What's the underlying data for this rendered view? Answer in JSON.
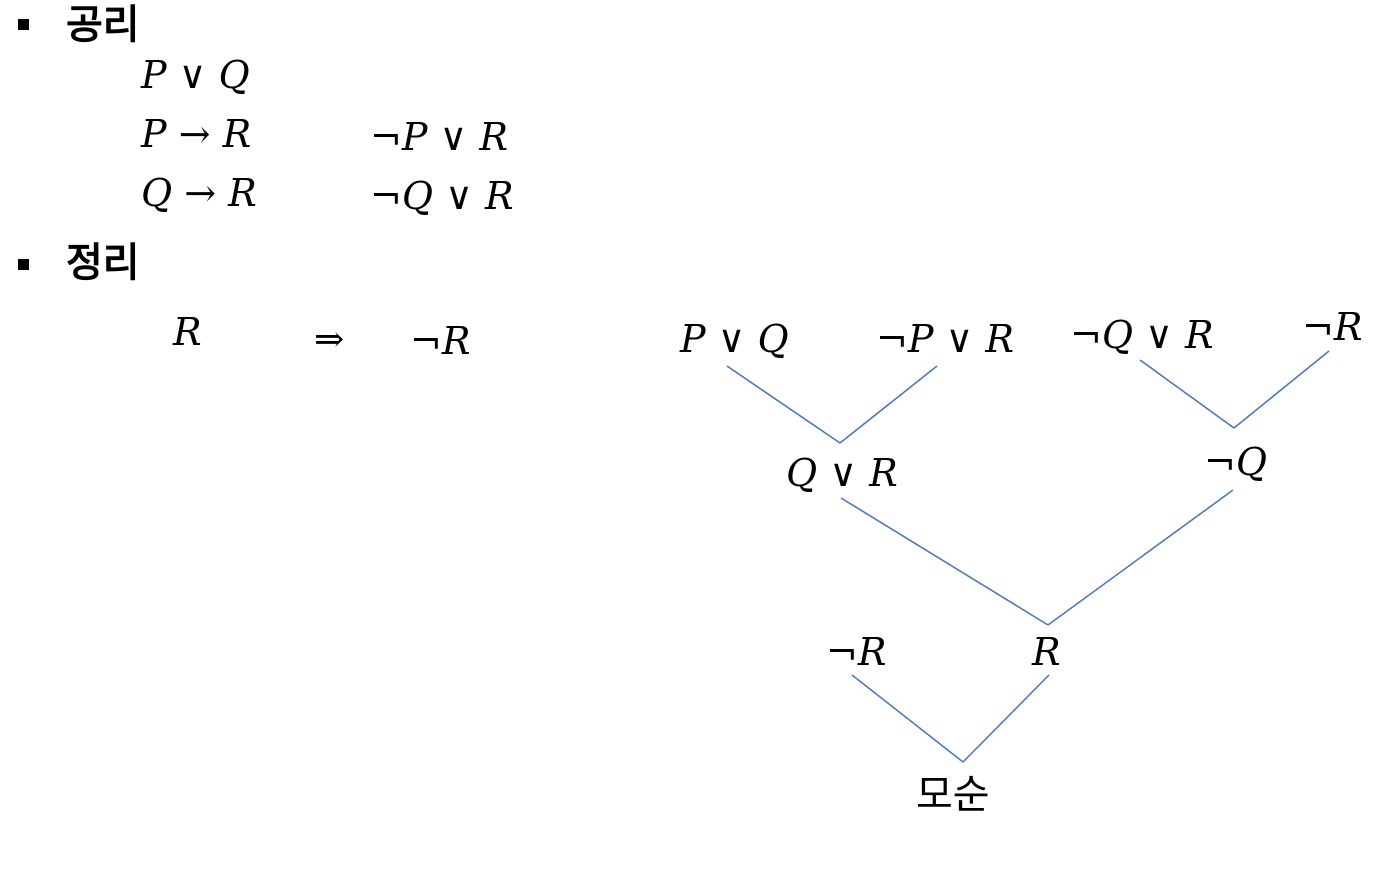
{
  "sections": {
    "axioms": {
      "heading": "공리",
      "rows": [
        {
          "formula": "P ∨ Q",
          "clause": ""
        },
        {
          "formula": "P → R",
          "clause": "¬P ∨ R"
        },
        {
          "formula": "Q → R",
          "clause": "¬Q ∨ R"
        }
      ]
    },
    "theorem": {
      "heading": "정리",
      "goal": "R",
      "arrow": "⇒",
      "negated_goal": "¬R"
    }
  },
  "resolution_tree": {
    "leaves": [
      "P ∨ Q",
      "¬P ∨ R",
      "¬Q ∨ R",
      "¬R"
    ],
    "level1": [
      "Q ∨ R",
      "¬Q"
    ],
    "level2_left": "¬R",
    "level2_result": "R",
    "conclusion": "모순"
  },
  "colors": {
    "edge": "#4f77b8",
    "text": "#000000"
  }
}
